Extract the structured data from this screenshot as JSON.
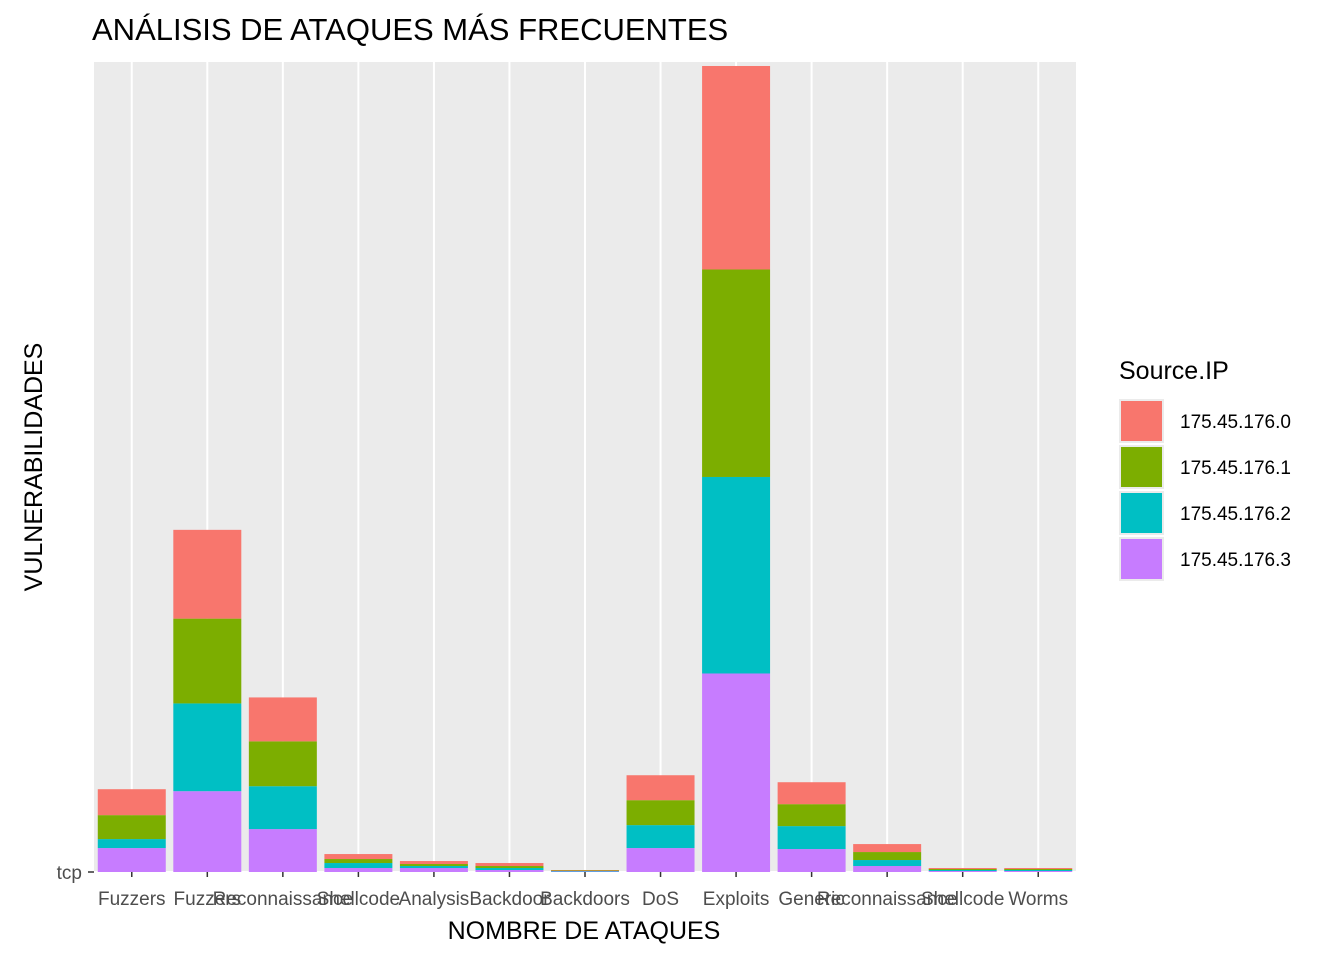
{
  "chart_data": {
    "type": "bar",
    "stacked": true,
    "title": "ANÁLISIS DE ATAQUES MÁS FRECUENTES",
    "xlabel": "NOMBRE DE ATAQUES",
    "ylabel": "VULNERABILIDADES",
    "y_tick_labels": [
      "tcp"
    ],
    "categories": [
      "Fuzzers",
      "Fuzzers",
      "Reconnaissance",
      "Shellcode",
      "Analysis",
      "Backdoor",
      "Backdoors",
      "DoS",
      "Exploits",
      "Generic",
      "Reconnaissance",
      "Shellcode",
      "Worms"
    ],
    "ylim": [
      0,
      812
    ],
    "grid": true,
    "background": "#ebebeb",
    "legend": {
      "title": "Source.IP",
      "position": "right"
    },
    "series": [
      {
        "name": "175.45.176.0",
        "color": "#F8766D",
        "values": [
          26,
          89,
          44,
          5,
          3,
          3,
          0.5,
          25,
          204,
          22,
          8,
          1,
          1
        ]
      },
      {
        "name": "175.45.176.1",
        "color": "#7CAE00",
        "values": [
          24,
          85,
          45,
          4,
          2,
          2,
          0.5,
          25,
          208,
          22,
          8,
          1,
          1
        ]
      },
      {
        "name": "175.45.176.2",
        "color": "#00BFC4",
        "values": [
          9,
          88,
          43,
          5,
          2,
          2,
          0.5,
          23,
          197,
          23,
          6,
          1,
          1
        ]
      },
      {
        "name": "175.45.176.3",
        "color": "#C77CFF",
        "values": [
          24,
          81,
          43,
          4,
          4,
          2,
          0.5,
          24,
          199,
          23,
          6,
          1,
          1
        ]
      }
    ]
  }
}
